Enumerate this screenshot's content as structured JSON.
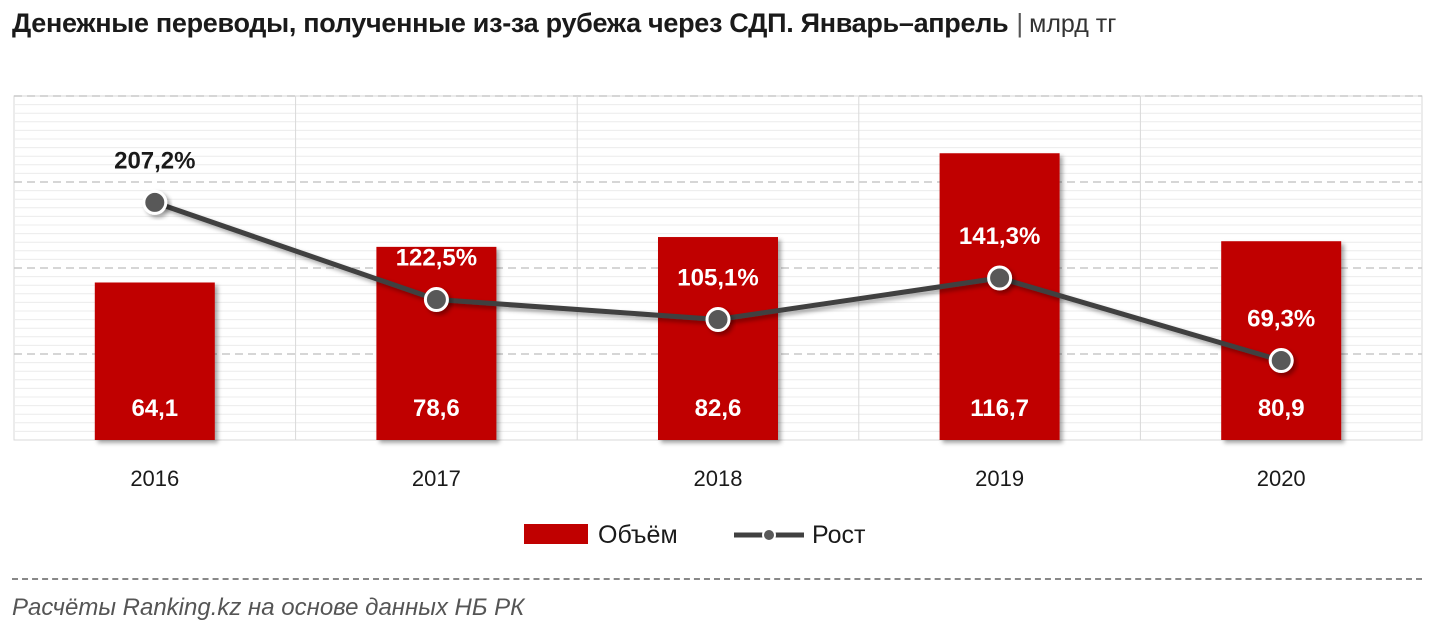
{
  "header": {
    "title": "Денежные переводы, полученные из-за рубежа через СДП. Январь–апрель",
    "separator": "|",
    "unit": "млрд тг"
  },
  "footer": {
    "source": "Расчёты Ranking.kz на основе данных НБ РК"
  },
  "chart_data": {
    "type": "bar",
    "categories": [
      "2016",
      "2017",
      "2018",
      "2019",
      "2020"
    ],
    "series": [
      {
        "name": "Объём",
        "type": "bar",
        "values": [
          64.1,
          78.6,
          82.6,
          116.7,
          80.9
        ],
        "labels": [
          "64,1",
          "78,6",
          "82,6",
          "116,7",
          "80,9"
        ],
        "color": "#c00000"
      },
      {
        "name": "Рост",
        "type": "line",
        "values": [
          207.2,
          122.5,
          105.1,
          141.3,
          69.3
        ],
        "labels": [
          "207,2%",
          "122,5%",
          "105,1%",
          "141,3%",
          "69,3%"
        ],
        "color": "#404040"
      }
    ],
    "bar_axis_range": [
      0,
      140
    ],
    "line_axis_range": [
      0,
      300
    ],
    "grid": true,
    "legend_position": "bottom"
  }
}
